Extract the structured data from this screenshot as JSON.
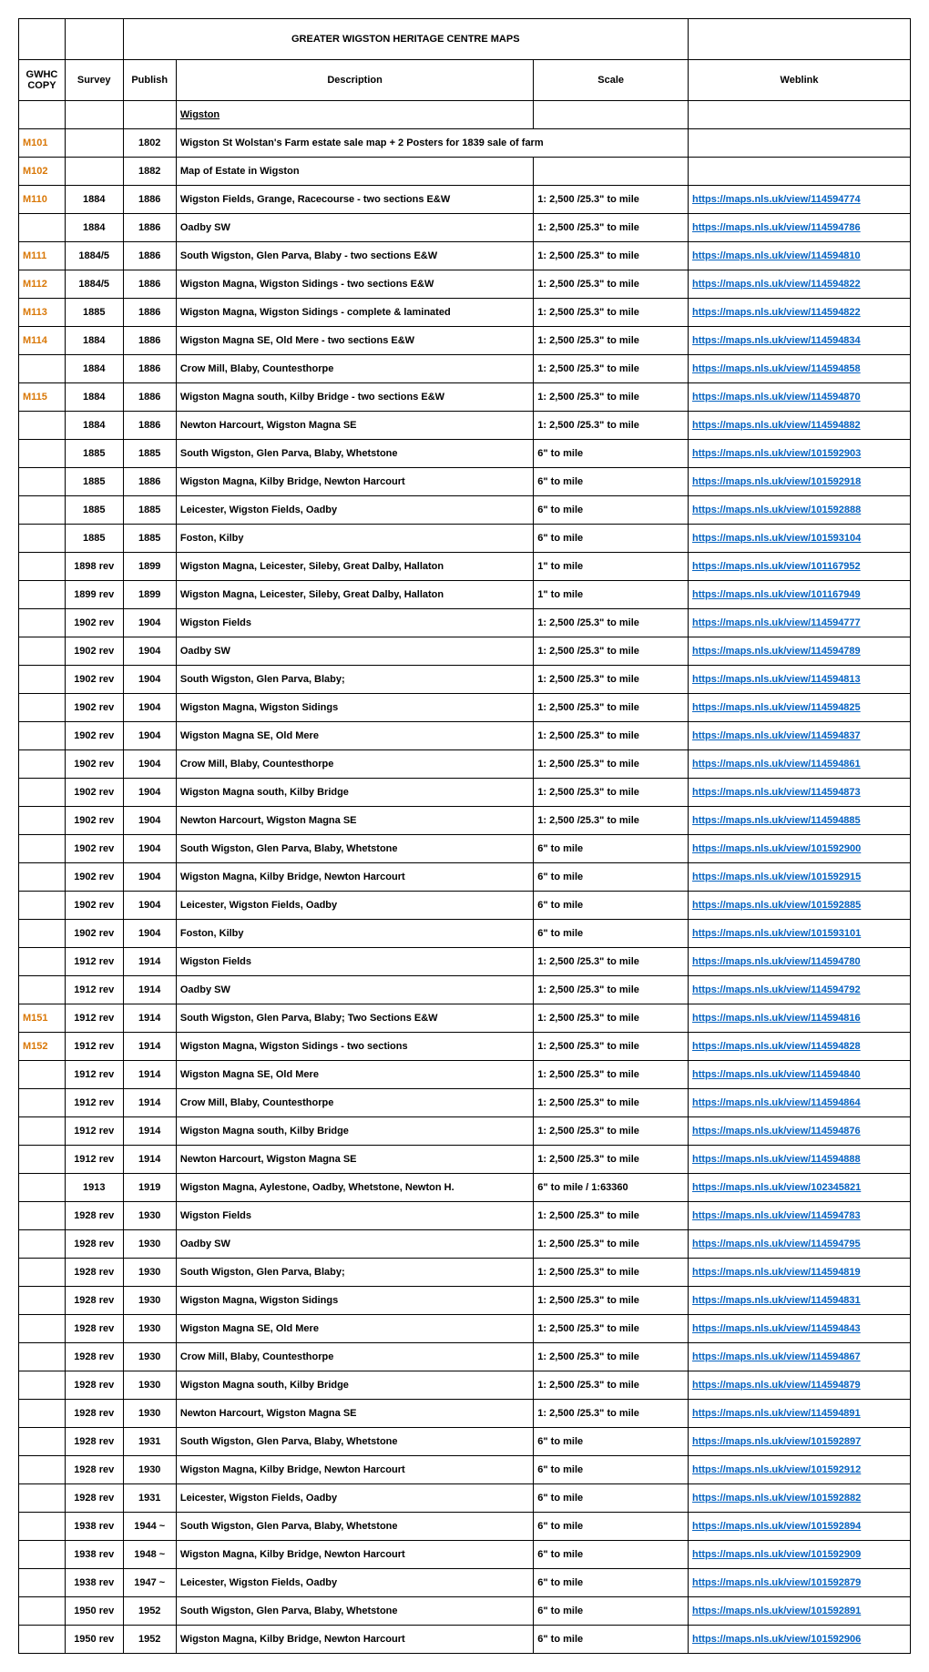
{
  "title": "GREATER WIGSTON HERITAGE CENTRE MAPS",
  "columns": {
    "gwhc": "GWHC COPY",
    "survey": "Survey",
    "publish": "Publish",
    "desc": "Description",
    "scale": "Scale",
    "weblink": "Weblink"
  },
  "section": "Wigston",
  "scales": {
    "s25": "1: 2,500 /25.3\" to mile",
    "s6": "6\" to mile",
    "s1": "1\" to mile",
    "s6r": "6\" to mile / 1:63360"
  },
  "rows": [
    {
      "gwhc": "M101",
      "gwhc_orange": true,
      "survey": "",
      "publish": "1802",
      "desc": "Wigston St Wolstan's Farm estate sale map + 2 Posters for 1839 sale of farm",
      "scale": "",
      "link": ""
    },
    {
      "gwhc": "M102",
      "gwhc_orange": true,
      "survey": "",
      "publish": "1882",
      "desc": "Map of Estate in Wigston",
      "scale": "",
      "link": ""
    },
    {
      "gwhc": "M110",
      "gwhc_orange": true,
      "survey": "1884",
      "publish": "1886",
      "desc": "Wigston Fields, Grange, Racecourse - two sections E&W",
      "scale": "1: 2,500 /25.3\" to mile",
      "link": "https://maps.nls.uk/view/114594774"
    },
    {
      "gwhc": "",
      "survey": "1884",
      "publish": "1886",
      "desc": "Oadby SW",
      "scale": "1: 2,500 /25.3\" to mile",
      "link": "https://maps.nls.uk/view/114594786"
    },
    {
      "gwhc": "M111",
      "gwhc_orange": true,
      "survey": "1884/5",
      "publish": "1886",
      "desc": "South Wigston, Glen Parva, Blaby - two sections E&W",
      "scale": "1: 2,500 /25.3\" to mile",
      "link": "https://maps.nls.uk/view/114594810"
    },
    {
      "gwhc": "M112",
      "gwhc_orange": true,
      "survey": "1884/5",
      "publish": "1886",
      "desc": "Wigston Magna, Wigston Sidings - two sections E&W",
      "scale": "1: 2,500 /25.3\" to mile",
      "link": "https://maps.nls.uk/view/114594822"
    },
    {
      "gwhc": "M113",
      "gwhc_orange": true,
      "survey": "1885",
      "publish": "1886",
      "desc": "Wigston Magna, Wigston Sidings - complete & laminated",
      "scale": "1: 2,500 /25.3\" to mile",
      "link": "https://maps.nls.uk/view/114594822"
    },
    {
      "gwhc": "M114",
      "gwhc_orange": true,
      "survey": "1884",
      "publish": "1886",
      "desc": "Wigston Magna SE, Old Mere - two sections E&W",
      "scale": "1: 2,500 /25.3\" to mile",
      "link": "https://maps.nls.uk/view/114594834"
    },
    {
      "gwhc": "",
      "survey": "1884",
      "publish": "1886",
      "desc": "Crow Mill, Blaby, Countesthorpe",
      "scale": "1: 2,500 /25.3\" to mile",
      "link": "https://maps.nls.uk/view/114594858"
    },
    {
      "gwhc": "M115",
      "gwhc_orange": true,
      "survey": "1884",
      "publish": "1886",
      "desc": "Wigston Magna south, Kilby Bridge - two sections E&W",
      "scale": "1: 2,500 /25.3\" to mile",
      "link": "https://maps.nls.uk/view/114594870"
    },
    {
      "gwhc": "",
      "survey": "1884",
      "publish": "1886",
      "desc": "Newton Harcourt, Wigston Magna SE",
      "scale": "1: 2,500 /25.3\" to mile",
      "link": "https://maps.nls.uk/view/114594882"
    },
    {
      "gwhc": "",
      "survey": "1885",
      "publish": "1885",
      "desc": "South Wigston, Glen Parva, Blaby, Whetstone",
      "scale": "6\" to mile",
      "link": "https://maps.nls.uk/view/101592903"
    },
    {
      "gwhc": "",
      "survey": "1885",
      "publish": "1886",
      "desc": "Wigston Magna, Kilby Bridge, Newton Harcourt",
      "scale": "6\" to mile",
      "link": "https://maps.nls.uk/view/101592918"
    },
    {
      "gwhc": "",
      "survey": "1885",
      "publish": "1885",
      "desc": "Leicester, Wigston Fields, Oadby",
      "scale": "6\" to mile",
      "link": "https://maps.nls.uk/view/101592888"
    },
    {
      "gwhc": "",
      "survey": "1885",
      "publish": "1885",
      "desc": "Foston, Kilby",
      "scale": "6\" to mile",
      "link": "https://maps.nls.uk/view/101593104"
    },
    {
      "gwhc": "",
      "survey": "1898 rev",
      "publish": "1899",
      "desc": "Wigston Magna, Leicester, Sileby, Great Dalby, Hallaton",
      "scale": "1\" to mile",
      "link": "https://maps.nls.uk/view/101167952"
    },
    {
      "gwhc": "",
      "survey": "1899 rev",
      "publish": "1899",
      "desc": "Wigston Magna, Leicester, Sileby, Great Dalby, Hallaton",
      "scale": "1\" to mile",
      "link": "https://maps.nls.uk/view/101167949"
    },
    {
      "gwhc": "",
      "survey": "1902 rev",
      "publish": "1904",
      "desc": "Wigston Fields",
      "scale": "1: 2,500 /25.3\" to mile",
      "link": "https://maps.nls.uk/view/114594777"
    },
    {
      "gwhc": "",
      "survey": "1902 rev",
      "publish": "1904",
      "desc": "Oadby SW",
      "scale": "1: 2,500 /25.3\" to mile",
      "link": "https://maps.nls.uk/view/114594789"
    },
    {
      "gwhc": "",
      "survey": "1902 rev",
      "publish": "1904",
      "desc": "South Wigston, Glen Parva,  Blaby;",
      "scale": "1: 2,500 /25.3\" to mile",
      "link": "https://maps.nls.uk/view/114594813"
    },
    {
      "gwhc": "",
      "survey": "1902 rev",
      "publish": "1904",
      "desc": "Wigston Magna, Wigston Sidings",
      "scale": "1: 2,500 /25.3\" to mile",
      "link": "https://maps.nls.uk/view/114594825"
    },
    {
      "gwhc": "",
      "survey": "1902 rev",
      "publish": "1904",
      "desc": "Wigston Magna SE, Old Mere",
      "scale": "1: 2,500 /25.3\" to mile",
      "link": "https://maps.nls.uk/view/114594837"
    },
    {
      "gwhc": "",
      "survey": "1902 rev",
      "publish": "1904",
      "desc": "Crow Mill, Blaby, Countesthorpe",
      "scale": "1: 2,500 /25.3\" to mile",
      "link": "https://maps.nls.uk/view/114594861"
    },
    {
      "gwhc": "",
      "survey": "1902 rev",
      "publish": "1904",
      "desc": "Wigston Magna south, Kilby Bridge",
      "scale": "1: 2,500 /25.3\" to mile",
      "link": "https://maps.nls.uk/view/114594873"
    },
    {
      "gwhc": "",
      "survey": "1902 rev",
      "publish": "1904",
      "desc": "Newton Harcourt, Wigston Magna SE",
      "scale": "1: 2,500 /25.3\" to mile",
      "link": "https://maps.nls.uk/view/114594885"
    },
    {
      "gwhc": "",
      "survey": "1902 rev",
      "publish": "1904",
      "desc": "South Wigston, Glen Parva, Blaby, Whetstone",
      "scale": "6\" to mile",
      "link": "https://maps.nls.uk/view/101592900"
    },
    {
      "gwhc": "",
      "survey": "1902 rev",
      "publish": "1904",
      "desc": "Wigston Magna, Kilby Bridge, Newton Harcourt",
      "scale": "6\" to mile",
      "link": "https://maps.nls.uk/view/101592915"
    },
    {
      "gwhc": "",
      "survey": "1902 rev",
      "publish": "1904",
      "desc": "Leicester, Wigston Fields, Oadby",
      "scale": "6\" to mile",
      "link": "https://maps.nls.uk/view/101592885"
    },
    {
      "gwhc": "",
      "survey": "1902 rev",
      "publish": "1904",
      "desc": "Foston, Kilby",
      "scale": "6\" to mile",
      "link": "https://maps.nls.uk/view/101593101"
    },
    {
      "gwhc": "",
      "survey": "1912 rev",
      "publish": "1914",
      "desc": "Wigston Fields",
      "scale": "1: 2,500 /25.3\" to mile",
      "link": "https://maps.nls.uk/view/114594780"
    },
    {
      "gwhc": "",
      "survey": "1912 rev",
      "publish": "1914",
      "desc": "Oadby SW",
      "scale": "1: 2,500 /25.3\" to mile",
      "link": "https://maps.nls.uk/view/114594792"
    },
    {
      "gwhc": "M151",
      "gwhc_orange": true,
      "survey": "1912 rev",
      "publish": "1914",
      "desc": "South Wigston, Glen Parva,  Blaby;  Two Sections E&W",
      "scale": "1: 2,500 /25.3\" to mile",
      "link": "https://maps.nls.uk/view/114594816"
    },
    {
      "gwhc": "M152",
      "gwhc_orange": true,
      "survey": "1912 rev",
      "publish": "1914",
      "desc": "Wigston Magna, Wigston Sidings - two sections",
      "scale": "1: 2,500 /25.3\" to mile",
      "link": "https://maps.nls.uk/view/114594828"
    },
    {
      "gwhc": "",
      "survey": "1912 rev",
      "publish": "1914",
      "desc": "Wigston Magna SE, Old Mere",
      "scale": "1: 2,500 /25.3\" to mile",
      "link": "https://maps.nls.uk/view/114594840"
    },
    {
      "gwhc": "",
      "survey": "1912 rev",
      "publish": "1914",
      "desc": "Crow Mill, Blaby, Countesthorpe",
      "scale": "1: 2,500 /25.3\" to mile",
      "link": "https://maps.nls.uk/view/114594864"
    },
    {
      "gwhc": "",
      "survey": "1912 rev",
      "publish": "1914",
      "desc": "Wigston Magna south, Kilby Bridge",
      "scale": "1: 2,500 /25.3\" to mile",
      "link": "https://maps.nls.uk/view/114594876"
    },
    {
      "gwhc": "",
      "survey": "1912 rev",
      "publish": "1914",
      "desc": "Newton Harcourt, Wigston Magna SE",
      "scale": "1: 2,500 /25.3\" to mile",
      "link": "https://maps.nls.uk/view/114594888"
    },
    {
      "gwhc": "",
      "survey": "1913",
      "publish": "1919",
      "desc": "Wigston Magna, Aylestone, Oadby, Whetstone, Newton H.",
      "scale": "6\" to mile / 1:63360",
      "link": "https://maps.nls.uk/view/102345821"
    },
    {
      "gwhc": "",
      "survey": "1928 rev",
      "publish": "1930",
      "desc": "Wigston Fields",
      "scale": "1: 2,500 /25.3\" to mile",
      "link": "https://maps.nls.uk/view/114594783"
    },
    {
      "gwhc": "",
      "survey": "1928 rev",
      "publish": "1930",
      "desc": "Oadby SW",
      "scale": "1: 2,500 /25.3\" to mile",
      "link": "https://maps.nls.uk/view/114594795"
    },
    {
      "gwhc": "",
      "survey": "1928 rev",
      "publish": "1930",
      "desc": "South Wigston, Glen Parva,  Blaby;",
      "scale": "1: 2,500 /25.3\" to mile",
      "link": "https://maps.nls.uk/view/114594819"
    },
    {
      "gwhc": "",
      "survey": "1928 rev",
      "publish": "1930",
      "desc": "Wigston Magna, Wigston Sidings",
      "scale": "1: 2,500 /25.3\" to mile",
      "link": "https://maps.nls.uk/view/114594831"
    },
    {
      "gwhc": "",
      "survey": "1928 rev",
      "publish": "1930",
      "desc": "Wigston Magna SE, Old Mere",
      "scale": "1: 2,500 /25.3\" to mile",
      "link": "https://maps.nls.uk/view/114594843"
    },
    {
      "gwhc": "",
      "survey": "1928 rev",
      "publish": "1930",
      "desc": "Crow Mill, Blaby, Countesthorpe",
      "scale": "1: 2,500 /25.3\" to mile",
      "link": "https://maps.nls.uk/view/114594867"
    },
    {
      "gwhc": "",
      "survey": "1928 rev",
      "publish": "1930",
      "desc": "Wigston Magna south, Kilby Bridge",
      "scale": "1: 2,500 /25.3\" to mile",
      "link": "https://maps.nls.uk/view/114594879"
    },
    {
      "gwhc": "",
      "survey": "1928 rev",
      "publish": "1930",
      "desc": "Newton Harcourt, Wigston Magna SE",
      "scale": "1: 2,500 /25.3\" to mile",
      "link": "https://maps.nls.uk/view/114594891"
    },
    {
      "gwhc": "",
      "survey": "1928 rev",
      "publish": "1931",
      "desc": "South Wigston, Glen Parva, Blaby, Whetstone",
      "scale": "6\" to mile",
      "link": "https://maps.nls.uk/view/101592897"
    },
    {
      "gwhc": "",
      "survey": "1928 rev",
      "publish": "1930",
      "desc": "Wigston Magna, Kilby Bridge, Newton Harcourt",
      "scale": "6\" to mile",
      "link": "https://maps.nls.uk/view/101592912"
    },
    {
      "gwhc": "",
      "survey": "1928 rev",
      "publish": "1931",
      "desc": "Leicester, Wigston Fields, Oadby",
      "scale": "6\" to mile",
      "link": "https://maps.nls.uk/view/101592882"
    },
    {
      "gwhc": "",
      "survey": "1938 rev",
      "publish": "1944 ~",
      "desc": "South Wigston, Glen Parva, Blaby, Whetstone",
      "scale": "6\" to mile",
      "link": "https://maps.nls.uk/view/101592894"
    },
    {
      "gwhc": "",
      "survey": "1938 rev",
      "publish": "1948 ~",
      "desc": "Wigston Magna, Kilby Bridge, Newton Harcourt",
      "scale": "6\" to mile",
      "link": "https://maps.nls.uk/view/101592909"
    },
    {
      "gwhc": "",
      "survey": "1938 rev",
      "publish": "1947 ~",
      "desc": "Leicester, Wigston Fields, Oadby",
      "scale": "6\" to mile",
      "link": "https://maps.nls.uk/view/101592879"
    },
    {
      "gwhc": "",
      "survey": "1950 rev",
      "publish": "1952",
      "desc": "South Wigston, Glen Parva, Blaby, Whetstone",
      "scale": "6\" to mile",
      "link": "https://maps.nls.uk/view/101592891"
    },
    {
      "gwhc": "",
      "survey": "1950 rev",
      "publish": "1952",
      "desc": "Wigston Magna, Kilby Bridge, Newton Harcourt",
      "scale": "6\" to mile",
      "link": "https://maps.nls.uk/view/101592906"
    }
  ]
}
